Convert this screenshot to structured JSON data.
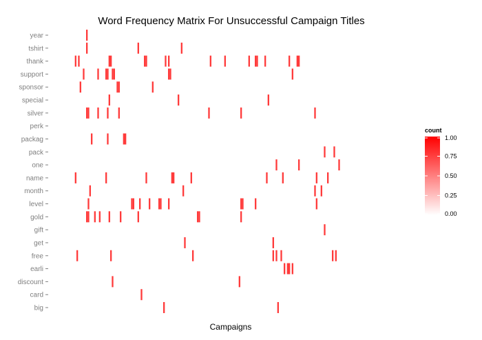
{
  "chart_data": {
    "type": "heatmap",
    "title": "Word Frequency Matrix For Unsuccessful Campaign Titles",
    "xlabel": "Campaigns",
    "ylabel": "",
    "words": [
      "big",
      "card",
      "discount",
      "earli",
      "free",
      "get",
      "gift",
      "gold",
      "level",
      "month",
      "name",
      "one",
      "pack",
      "packag",
      "perk",
      "silver",
      "special",
      "sponsor",
      "support",
      "thank",
      "tshirt",
      "year"
    ],
    "n_campaigns": 210,
    "cells": {
      "year": [
        15
      ],
      "tshirt": [
        15,
        47,
        74
      ],
      "thank": [
        8,
        10,
        29,
        30,
        51,
        52,
        64,
        66,
        92,
        101,
        116,
        120,
        121,
        126,
        141,
        146,
        147
      ],
      "support": [
        13,
        22,
        27,
        28,
        31,
        32,
        66,
        67,
        143
      ],
      "sponsor": [
        11,
        34,
        35,
        56
      ],
      "special": [
        29,
        72,
        128
      ],
      "silver": [
        15,
        16,
        22,
        28,
        35,
        91,
        111,
        157
      ],
      "perk": [],
      "packag": [
        18,
        28,
        38,
        39
      ],
      "pack": [
        163,
        169
      ],
      "one": [
        133,
        147,
        172
      ],
      "name": [
        8,
        27,
        52,
        68,
        69,
        80,
        127,
        137,
        158,
        165
      ],
      "month": [
        17,
        75,
        157,
        161
      ],
      "level": [
        16,
        43,
        44,
        48,
        54,
        60,
        61,
        66,
        111,
        112,
        120,
        158
      ],
      "gold": [
        15,
        16,
        20,
        23,
        29,
        36,
        47,
        84,
        85,
        111
      ],
      "gift": [
        163
      ],
      "get": [
        76,
        131
      ],
      "free": [
        9,
        30,
        81,
        131,
        133,
        136,
        168,
        170
      ],
      "earli": [
        138,
        140,
        141,
        143
      ],
      "discount": [
        31,
        110
      ],
      "card": [
        49
      ],
      "big": [
        63,
        134
      ]
    },
    "scale": {
      "title": "count",
      "low_color": "#ffffff",
      "high_color": "#ff0000",
      "min": 0,
      "max": 1,
      "breaks": [
        "0.00",
        "0.25",
        "0.50",
        "0.75",
        "1.00"
      ]
    }
  }
}
